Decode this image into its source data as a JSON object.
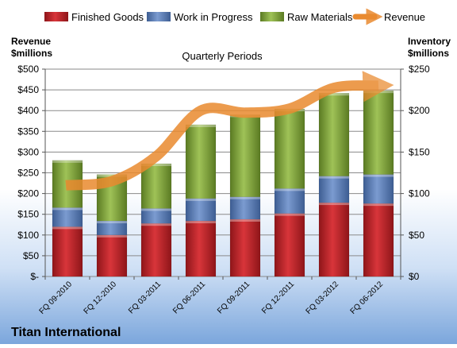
{
  "chart_data": {
    "type": "bar",
    "stacked": true,
    "title": "Quarterly Periods",
    "company": "Titan International",
    "ylabel_left": [
      "Revenue",
      "$millions"
    ],
    "ylabel_right": [
      "Inventory",
      "$millions"
    ],
    "categories": [
      "FQ 09-2010",
      "FQ 12-2010",
      "FQ 03-2011",
      "FQ 06-2011",
      "FQ 09-2011",
      "FQ 12-2011",
      "FQ 03-2012",
      "FQ 06-2012"
    ],
    "y_left": {
      "min": 0,
      "max": 500,
      "step": 50,
      "ticks": [
        "$-",
        "$50",
        "$100",
        "$150",
        "$200",
        "$250",
        "$300",
        "$350",
        "$400",
        "$450",
        "$500"
      ]
    },
    "y_right": {
      "min": 0,
      "max": 250,
      "step": 50,
      "ticks": [
        "$0",
        "$50",
        "$100",
        "$150",
        "$200",
        "$250"
      ]
    },
    "legend_position": "top",
    "series": [
      {
        "name": "Finished Goods",
        "axis": "right",
        "color": "#c0262c",
        "values": [
          60,
          50,
          64,
          67,
          69,
          76,
          89,
          88
        ]
      },
      {
        "name": "Work in Progress",
        "axis": "right",
        "color": "#5b7fba",
        "values": [
          23,
          17,
          18,
          27,
          27,
          30,
          32,
          35
        ]
      },
      {
        "name": "Raw Materials",
        "axis": "right",
        "color": "#82a83c",
        "values": [
          57,
          56,
          54,
          89,
          99,
          96,
          100,
          101
        ]
      },
      {
        "name": "Revenue",
        "axis": "left",
        "type": "line",
        "color": "#e98a2f",
        "values": [
          220,
          230,
          290,
          400,
          395,
          405,
          455,
          460
        ]
      }
    ]
  }
}
